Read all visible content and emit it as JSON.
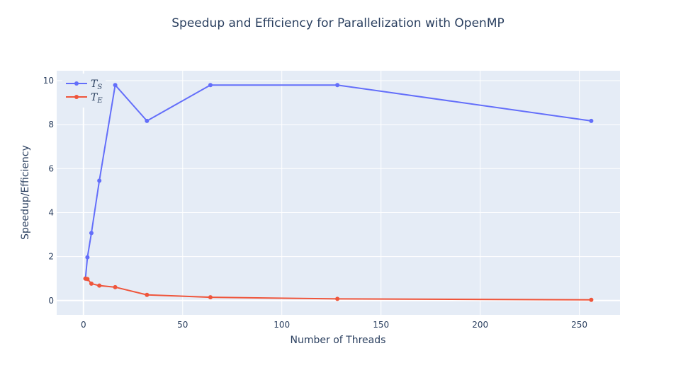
{
  "chart_data": {
    "type": "line",
    "title": "Speedup and Efficiency for Parallelization with OpenMP",
    "xlabel": "Number of Threads",
    "ylabel": "Speedup/Efficiency",
    "xlim": [
      -13.5,
      270.5
    ],
    "ylim": [
      -0.65,
      10.45
    ],
    "xticks": [
      0,
      50,
      100,
      150,
      200,
      250
    ],
    "yticks": [
      0,
      2,
      4,
      6,
      8,
      10
    ],
    "grid": true,
    "legend_position": "top-left",
    "plot_background": "#e5ecf6",
    "series": [
      {
        "name": "T",
        "subscript": "S",
        "color": "#636efa",
        "x": [
          1,
          2,
          4,
          8,
          16,
          32,
          64,
          128,
          256
        ],
        "y": [
          1.0,
          1.97,
          3.07,
          5.45,
          9.8,
          8.17,
          9.8,
          9.8,
          8.17
        ]
      },
      {
        "name": "T",
        "subscript": "E",
        "color": "#ef553b",
        "x": [
          1,
          2,
          4,
          8,
          16,
          32,
          64,
          128,
          256
        ],
        "y": [
          1.0,
          0.98,
          0.77,
          0.68,
          0.61,
          0.26,
          0.15,
          0.077,
          0.032
        ]
      }
    ]
  }
}
